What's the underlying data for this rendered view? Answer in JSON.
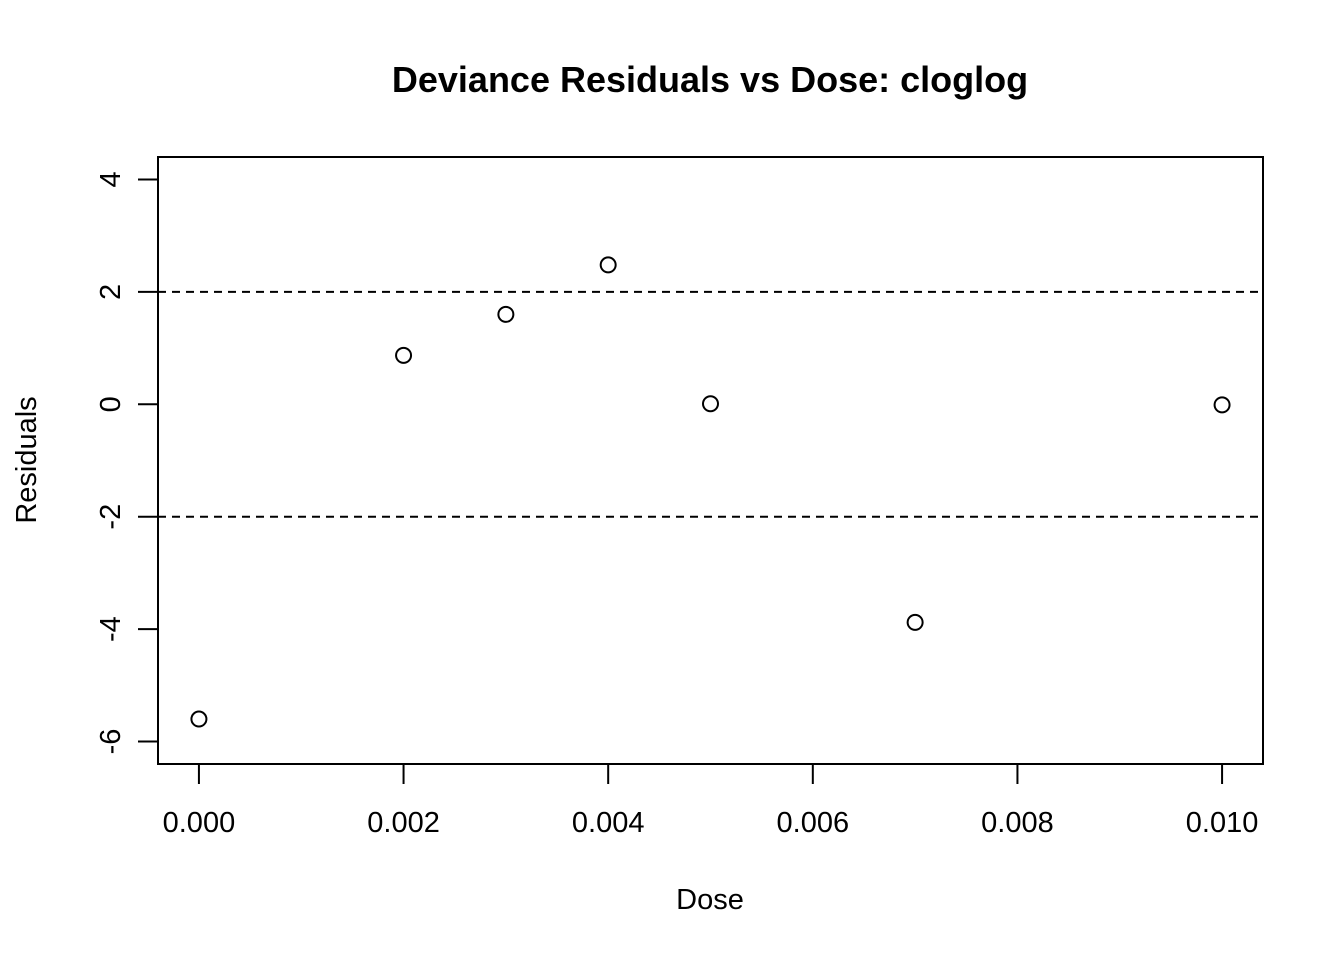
{
  "chart_data": {
    "type": "scatter",
    "title": "Deviance Residuals vs Dose: cloglog",
    "xlabel": "Dose",
    "ylabel": "Residuals",
    "xlim": [
      -0.0004,
      0.0104
    ],
    "ylim": [
      -6.4,
      4.4
    ],
    "xticks": [
      0.0,
      0.002,
      0.004,
      0.006,
      0.008,
      0.01
    ],
    "xtick_labels": [
      "0.000",
      "0.002",
      "0.004",
      "0.006",
      "0.008",
      "0.010"
    ],
    "yticks": [
      -6,
      -4,
      -2,
      0,
      2,
      4
    ],
    "ytick_labels": [
      "-6",
      "-4",
      "-2",
      "0",
      "2",
      "4"
    ],
    "reference_lines": [
      2,
      -2
    ],
    "grid": false,
    "series": [
      {
        "x": [
          0.0,
          0.002,
          0.003,
          0.004,
          0.005,
          0.007,
          0.01
        ],
        "y": [
          -5.6,
          0.87,
          1.6,
          2.48,
          0.01,
          -3.88,
          -0.01
        ]
      }
    ]
  }
}
